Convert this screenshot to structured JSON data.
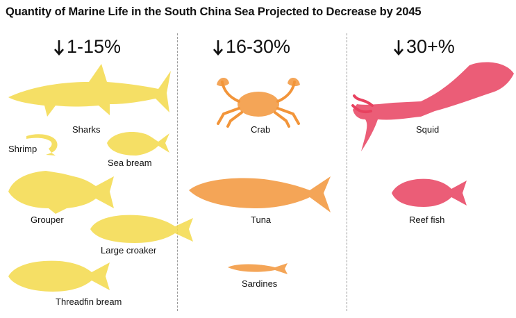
{
  "title": "Quantity of Marine Life in the South China Sea Projected to Decrease by 2045",
  "chart_data": {
    "type": "table",
    "columns": [
      {
        "heading": "1-15%",
        "color": "#f3d94a",
        "species": [
          "Sharks",
          "Shrimp",
          "Sea bream",
          "Grouper",
          "Large croaker",
          "Threadfin bream"
        ]
      },
      {
        "heading": "16-30%",
        "color": "#f2953a",
        "species": [
          "Crab",
          "Tuna",
          "Sardines"
        ]
      },
      {
        "heading": "30+%",
        "color": "#e8415f",
        "species": [
          "Squid",
          "Reef fish"
        ]
      }
    ]
  },
  "icons": {
    "down_arrow": "down-arrow-icon",
    "sharks": "shark-icon",
    "shrimp": "shrimp-icon",
    "sea_bream": "fish-icon",
    "grouper": "fish-icon",
    "large_croaker": "fish-icon",
    "threadfin_bream": "fish-icon",
    "crab": "crab-icon",
    "tuna": "fish-icon",
    "sardines": "fish-icon",
    "squid": "squid-icon",
    "reef_fish": "fish-icon"
  }
}
